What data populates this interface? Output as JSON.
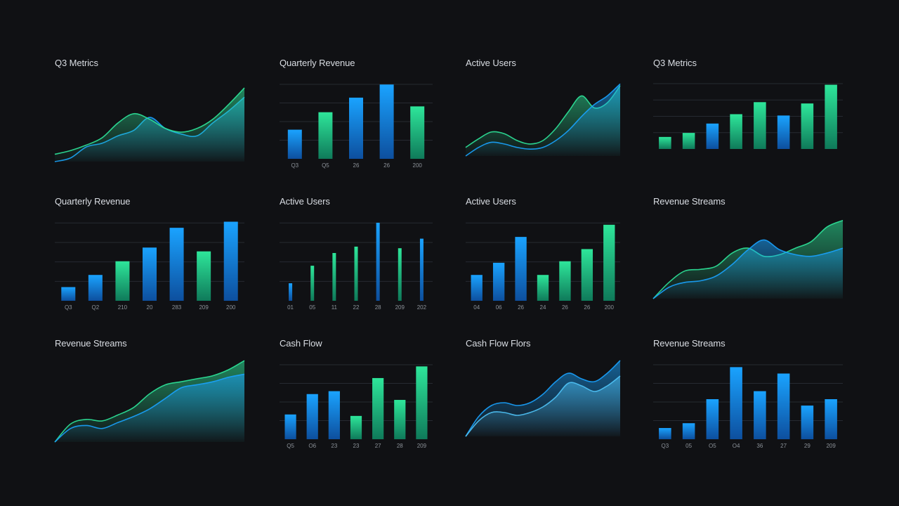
{
  "colors": {
    "background": "#101114",
    "blue": "#1aa3ff",
    "blue_dark": "#0d4f9e",
    "green": "#2ee69a",
    "green_dark": "#0f7a5a",
    "cyan_line": "#4fc3f7",
    "grid": "#262a31",
    "text": "#d9dde3",
    "tick": "#8c9299"
  },
  "panels": [
    {
      "title": "Q3 Metrics",
      "chart_data": {
        "type": "area",
        "x": [
          0,
          1,
          2,
          3,
          4,
          5,
          6,
          7,
          8,
          9,
          10,
          11,
          12
        ],
        "series": [
          {
            "values": [
              0,
              4,
              16,
              20,
              28,
              34,
              48,
              36,
              30,
              28,
              42,
              55,
              70
            ],
            "color": "blue"
          },
          {
            "values": [
              8,
              12,
              18,
              26,
              42,
              52,
              46,
              36,
              32,
              36,
              46,
              62,
              80
            ],
            "color": "green"
          }
        ],
        "ylim": [
          0,
          90
        ]
      }
    },
    {
      "title": "Quarterly Revenue",
      "chart_data": {
        "type": "bar",
        "categories": [
          "Q3",
          "Q5",
          "26",
          "26",
          "200"
        ],
        "values": [
          40,
          64,
          84,
          102,
          72
        ],
        "colors": [
          "blue",
          "green",
          "blue",
          "blue",
          "green"
        ],
        "ylim": [
          0,
          110
        ]
      }
    },
    {
      "title": "Active Users",
      "chart_data": {
        "type": "area",
        "x": [
          0,
          1,
          2,
          3,
          4,
          5,
          6,
          7,
          8,
          9,
          10,
          11,
          12
        ],
        "series": [
          {
            "values": [
              10,
              20,
              28,
              26,
              18,
              14,
              18,
              32,
              52,
              70,
              56,
              62,
              82
            ],
            "color": "green"
          },
          {
            "values": [
              0,
              10,
              16,
              14,
              10,
              8,
              10,
              18,
              30,
              46,
              60,
              70,
              84
            ],
            "color": "blue"
          }
        ],
        "ylim": [
          0,
          90
        ]
      }
    },
    {
      "title": "Q3 Metrics",
      "chart_data": {
        "type": "bar",
        "categories": [
          "",
          "",
          "",
          "",
          "",
          "",
          ""
        ],
        "values": [
          18,
          24,
          38,
          52,
          70,
          50,
          68
        ],
        "colors": [
          "green",
          "green",
          "blue",
          "green",
          "green",
          "blue",
          "green"
        ],
        "values_extra": [
          96
        ],
        "ylim": [
          0,
          105
        ]
      }
    },
    {
      "title": "Quarterly Revenue",
      "chart_data": {
        "type": "bar",
        "categories": [
          "Q3",
          "Q2",
          "210",
          "20",
          "283",
          "209",
          "200"
        ],
        "values": [
          18,
          34,
          52,
          70,
          96,
          65,
          104
        ],
        "colors": [
          "blue",
          "blue",
          "green",
          "blue",
          "blue",
          "green",
          "blue"
        ],
        "ylim": [
          0,
          110
        ]
      }
    },
    {
      "title": "Active Users",
      "chart_data": {
        "type": "bar",
        "categories": [
          "01",
          "05",
          "11",
          "22",
          "28",
          "209",
          "202"
        ],
        "values": [
          22,
          44,
          60,
          68,
          98,
          66,
          78
        ],
        "colors": [
          "blue",
          "green",
          "green",
          "green",
          "blue",
          "green",
          "blue"
        ],
        "thin": true,
        "ylim": [
          0,
          105
        ]
      }
    },
    {
      "title": "Active Users",
      "chart_data": {
        "type": "bar",
        "categories": [
          "04",
          "06",
          "26",
          "24",
          "26",
          "26",
          "200"
        ],
        "values": [
          34,
          50,
          84,
          34,
          52,
          68,
          100
        ],
        "colors": [
          "blue",
          "blue",
          "blue",
          "green",
          "green",
          "green",
          "green"
        ],
        "ylim": [
          0,
          110
        ]
      }
    },
    {
      "title": "Revenue Streams",
      "chart_data": {
        "type": "area",
        "x": [
          0,
          1,
          2,
          3,
          4,
          5,
          6,
          7,
          8,
          9,
          10,
          11,
          12
        ],
        "series": [
          {
            "values": [
              0,
              20,
              34,
              36,
              40,
              56,
              62,
              52,
              54,
              62,
              70,
              88,
              96
            ],
            "color": "green"
          },
          {
            "values": [
              0,
              14,
              20,
              22,
              28,
              42,
              60,
              72,
              60,
              54,
              52,
              56,
              62
            ],
            "color": "blue"
          }
        ],
        "ylim": [
          0,
          100
        ]
      }
    },
    {
      "title": "Revenue Streams",
      "chart_data": {
        "type": "area",
        "x": [
          0,
          1,
          2,
          3,
          4,
          5,
          6,
          7,
          8,
          9,
          10,
          11,
          12
        ],
        "series": [
          {
            "values": [
              0,
              24,
              30,
              28,
              36,
              46,
              64,
              76,
              80,
              84,
              88,
              96,
              108
            ],
            "color": "green"
          },
          {
            "values": [
              0,
              18,
              22,
              18,
              26,
              34,
              44,
              58,
              72,
              76,
              80,
              86,
              90
            ],
            "color": "blue"
          }
        ],
        "ylim": [
          0,
          110
        ]
      }
    },
    {
      "title": "Cash Flow",
      "chart_data": {
        "type": "bar",
        "categories": [
          "Q5",
          "O6",
          "23",
          "23",
          "27",
          "28",
          "209"
        ],
        "values": [
          34,
          62,
          66,
          32,
          84,
          54,
          100
        ],
        "colors": [
          "blue",
          "blue",
          "blue",
          "green",
          "green",
          "green",
          "green"
        ],
        "ylim": [
          0,
          110
        ]
      }
    },
    {
      "title": "Cash Flow Flors",
      "chart_data": {
        "type": "area",
        "x": [
          0,
          1,
          2,
          3,
          4,
          5,
          6,
          7,
          8,
          9,
          10,
          11,
          12
        ],
        "series": [
          {
            "values": [
              0,
              28,
              44,
              48,
              44,
              48,
              60,
              78,
              90,
              82,
              78,
              90,
              108
            ],
            "color": "blue"
          },
          {
            "values": [
              0,
              22,
              34,
              34,
              30,
              34,
              42,
              56,
              76,
              72,
              64,
              72,
              86
            ],
            "color": "cyan"
          }
        ],
        "ylim": [
          0,
          110
        ]
      }
    },
    {
      "title": "Revenue Streams",
      "chart_data": {
        "type": "bar",
        "categories": [
          "Q3",
          "05",
          "O5",
          "O4",
          "36",
          "27",
          "29",
          "209"
        ],
        "values": [
          14,
          20,
          50,
          90,
          60,
          82,
          42,
          50
        ],
        "colors": [
          "blue",
          "blue",
          "blue",
          "blue",
          "blue",
          "blue",
          "blue",
          "blue"
        ],
        "ylim": [
          0,
          100
        ]
      }
    }
  ]
}
